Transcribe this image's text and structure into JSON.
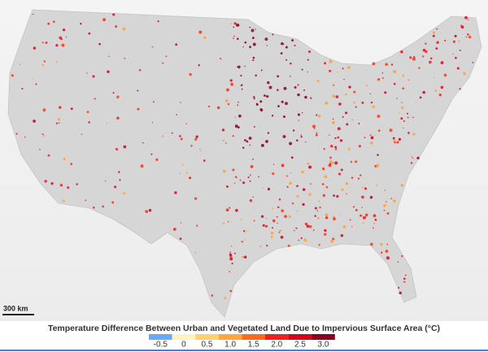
{
  "scale_bar": {
    "label": "300 km"
  },
  "legend": {
    "title": "Temperature Difference Between Urban and Vegetated Land Due to Impervious Surface Area (°C)",
    "ticks": [
      -0.5,
      0,
      0.5,
      {
        "value": 1.0,
        "label": "1.0"
      },
      {
        "value": 1.5,
        "label": "1.5"
      },
      {
        "value": 2.0,
        "label": "2.0"
      },
      {
        "value": 2.5,
        "label": "2.5"
      },
      {
        "value": 3.0,
        "label": "3.0"
      }
    ],
    "colors": [
      "#6aa8f0",
      "#fff3c0",
      "#ffd070",
      "#ffa640",
      "#ff6a20",
      "#f0201c",
      "#d80020",
      "#8a0020"
    ]
  }
}
